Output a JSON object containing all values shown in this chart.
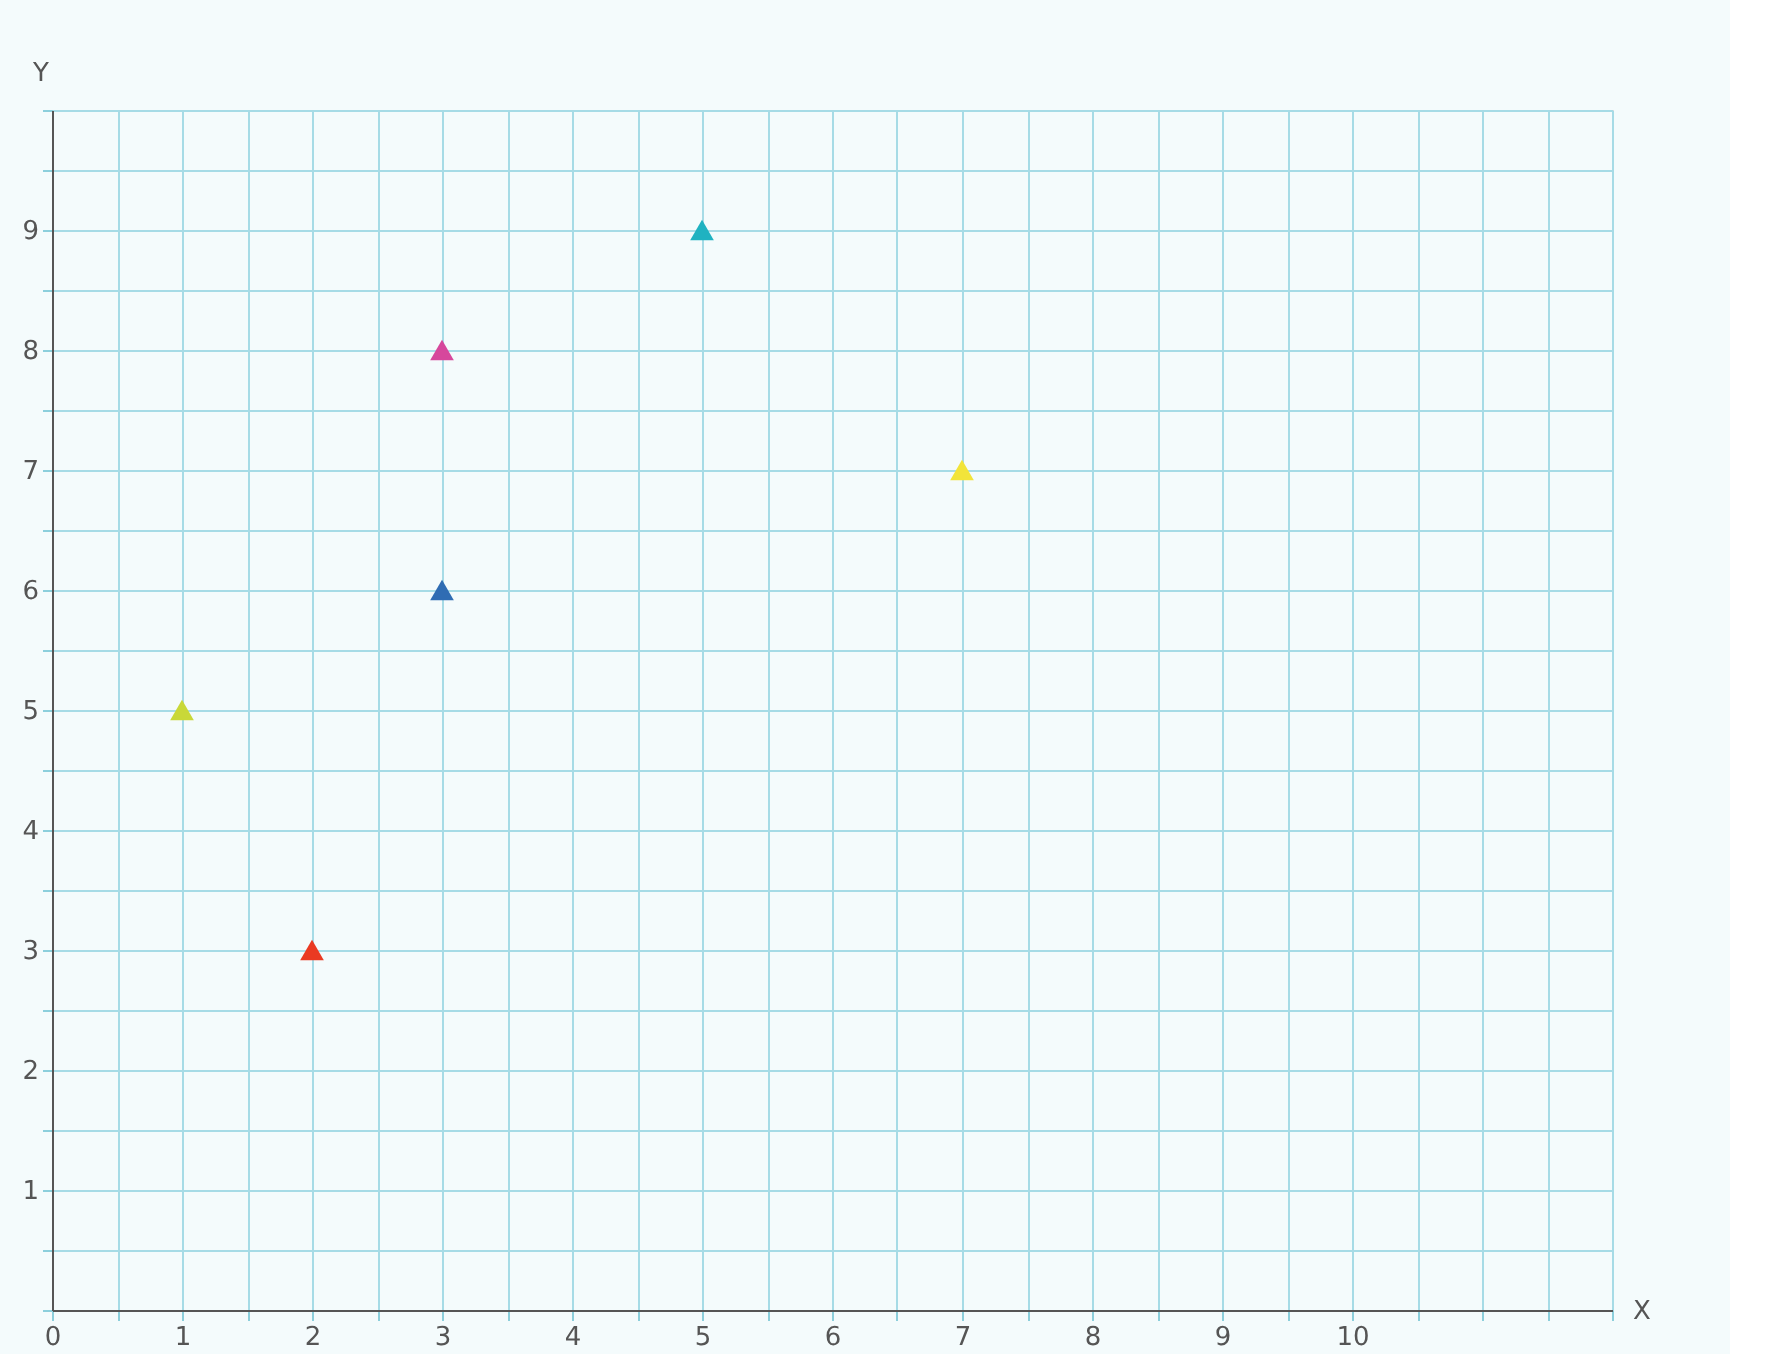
{
  "chart_data": {
    "type": "scatter",
    "xlabel": "X",
    "ylabel": "Y",
    "x": [
      1,
      2,
      3,
      3,
      5,
      7
    ],
    "values": [
      5,
      3,
      6,
      8,
      9,
      7
    ],
    "colors": [
      "#c9d838",
      "#ea3a22",
      "#2f6cb3",
      "#d6479c",
      "#1fb2c1",
      "#f2e43a"
    ],
    "marker": "triangle",
    "xlim": [
      0,
      12
    ],
    "ylim": [
      0,
      10
    ],
    "xticks": [
      0,
      {
        "value": 0.5,
        "label": null
      },
      1,
      {
        "value": 1.5,
        "label": null
      },
      2,
      {
        "value": 2.5,
        "label": null
      },
      3,
      {
        "value": 3.5,
        "label": null
      },
      4,
      {
        "value": 4.5,
        "label": null
      },
      5,
      {
        "value": 5.5,
        "label": null
      },
      6,
      {
        "value": 6.5,
        "label": null
      },
      7,
      {
        "value": 7.5,
        "label": null
      },
      8,
      {
        "value": 8.5,
        "label": null
      },
      9,
      {
        "value": 9.5,
        "label": null
      },
      10,
      {
        "value": 10.5,
        "label": null
      },
      {
        "value": 11,
        "label": null
      },
      {
        "value": 11.5,
        "label": null
      },
      {
        "value": 12,
        "label": null
      }
    ],
    "yticks": [
      {
        "value": 0,
        "label": null
      },
      {
        "value": 0.5,
        "label": null
      },
      1,
      {
        "value": 1.5,
        "label": null
      },
      2,
      {
        "value": 2.5,
        "label": null
      },
      3,
      {
        "value": 3.5,
        "label": null
      },
      4,
      {
        "value": 4.5,
        "label": null
      },
      5,
      {
        "value": 5.5,
        "label": null
      },
      6,
      {
        "value": 6.5,
        "label": null
      },
      7,
      {
        "value": 7.5,
        "label": null
      },
      8,
      {
        "value": 8.5,
        "label": null
      },
      9,
      {
        "value": 9.5,
        "label": null
      },
      {
        "value": 10,
        "label": null
      }
    ],
    "grid": true
  }
}
